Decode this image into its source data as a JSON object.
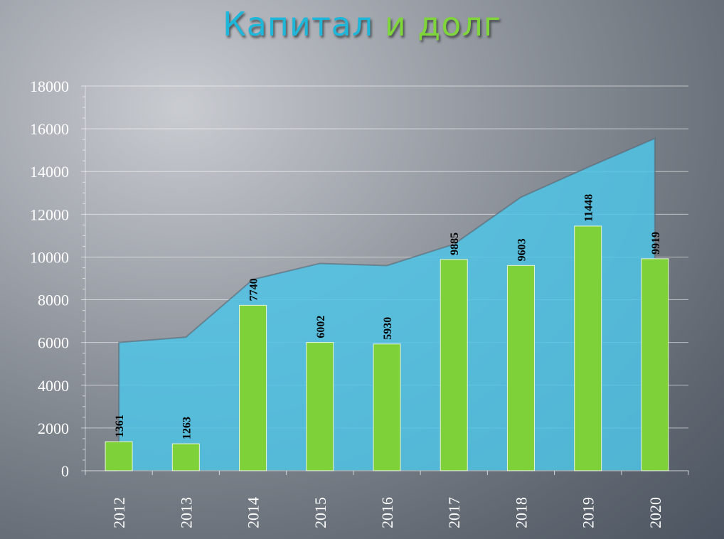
{
  "title": {
    "part1": "Капитал",
    "part2": "и долг"
  },
  "colors": {
    "title_part1": "#1fb7d9",
    "title_part2": "#7fd63a",
    "area": "#4fc3e6",
    "bar": "#7fd13a",
    "grid": "#ffffff",
    "text": "#ffffff"
  },
  "chart_data": {
    "type": "bar",
    "categories": [
      "2012",
      "2013",
      "2014",
      "2015",
      "2016",
      "2017",
      "2018",
      "2019",
      "2020"
    ],
    "series": [
      {
        "type": "area",
        "values": [
          6000,
          6250,
          8950,
          9700,
          9600,
          10600,
          12800,
          14200,
          15550
        ]
      },
      {
        "type": "bar",
        "values": [
          1361,
          1263,
          7740,
          6002,
          5930,
          9885,
          9603,
          11448,
          9919
        ],
        "data_labels": [
          "1361",
          "1263",
          "7740",
          "6002",
          "5930",
          "9885",
          "9603",
          "11448",
          "9919"
        ]
      }
    ],
    "y_ticks": [
      "0",
      "2000",
      "4000",
      "6000",
      "8000",
      "10000",
      "12000",
      "14000",
      "16000",
      "18000"
    ],
    "ylim": [
      0,
      18000
    ],
    "grid": true
  }
}
